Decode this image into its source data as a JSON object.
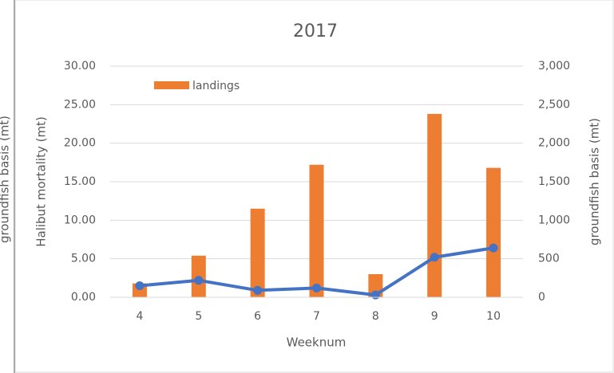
{
  "chart_data": {
    "type": "bar_line",
    "title": "2017",
    "background_axis_label": "groundfish basis (mt)",
    "ylabel": "Halibut mortality (mt)",
    "y2label": "groundfish basis (mt)",
    "xlabel": "Weeknum",
    "categories": [
      "4",
      "5",
      "6",
      "7",
      "8",
      "9",
      "10"
    ],
    "series": [
      {
        "name": "landings",
        "type": "bar",
        "axis": "y2",
        "color": "#ed7d31",
        "values": [
          180,
          540,
          1150,
          1720,
          300,
          2380,
          1680
        ]
      },
      {
        "type": "line",
        "axis": "y",
        "color": "#4472c4",
        "values": [
          1.5,
          2.2,
          0.9,
          1.2,
          0.3,
          5.2,
          6.4
        ]
      }
    ],
    "ylim": [
      0,
      30
    ],
    "yticks": [
      {
        "value": 0,
        "label": "0.00"
      },
      {
        "value": 5,
        "label": "5.00"
      },
      {
        "value": 10,
        "label": "10.00"
      },
      {
        "value": 15,
        "label": "15.00"
      },
      {
        "value": 20,
        "label": "20.00"
      },
      {
        "value": 25,
        "label": "25.00"
      },
      {
        "value": 30,
        "label": "30.00"
      }
    ],
    "y2lim": [
      0,
      3000
    ],
    "y2ticks": [
      0,
      500,
      {
        "value": 1000,
        "label": "1,000"
      },
      {
        "value": 1500,
        "label": "1,500"
      },
      {
        "value": 2000,
        "label": "2,000"
      },
      {
        "value": 2500,
        "label": "2,500"
      },
      {
        "value": 3000,
        "label": "3,000"
      }
    ],
    "grid": true,
    "legend": "top-left"
  }
}
